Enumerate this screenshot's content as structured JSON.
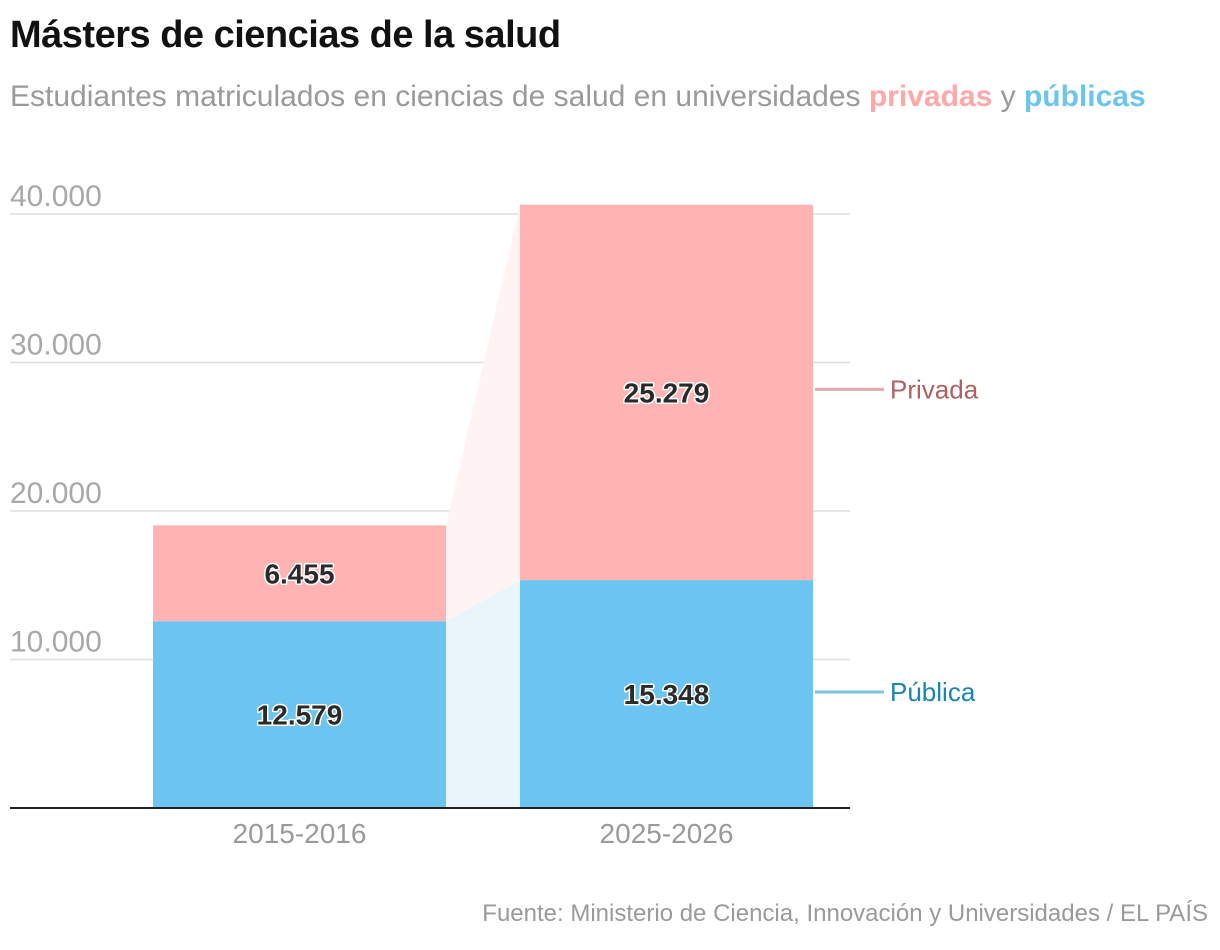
{
  "chart": {
    "title": "Másters de ciencias de la salud",
    "subtitle_lead": "Estudiantes matriculados en ciencias de salud en universidades",
    "subtitle_priv": "privadas",
    "subtitle_joiner": "y",
    "subtitle_pub": "públicas",
    "source": "Fuente: Ministerio de Ciencia, Innovación y Universidades / EL PAÍS"
  },
  "chart_data": {
    "type": "bar",
    "stacked": true,
    "categories": [
      "2015-2016",
      "2025-2026"
    ],
    "series": [
      {
        "name": "Pública",
        "values": [
          12579,
          15348
        ],
        "labels": [
          "12.579",
          "15.348"
        ],
        "color": "#6cc5f0",
        "label_color": "#1a86a8"
      },
      {
        "name": "Privada",
        "values": [
          6455,
          25279
        ],
        "labels": [
          "6.455",
          "25.279"
        ],
        "color": "#ffb3b3",
        "label_color": "#b06060"
      }
    ],
    "ylim": [
      0,
      40000
    ],
    "yticks": [
      10000,
      20000,
      30000,
      40000
    ],
    "ytick_labels": [
      "10.000",
      "20.000",
      "30.000",
      "40.000"
    ],
    "grid": true,
    "legend": "right, inline labels"
  }
}
